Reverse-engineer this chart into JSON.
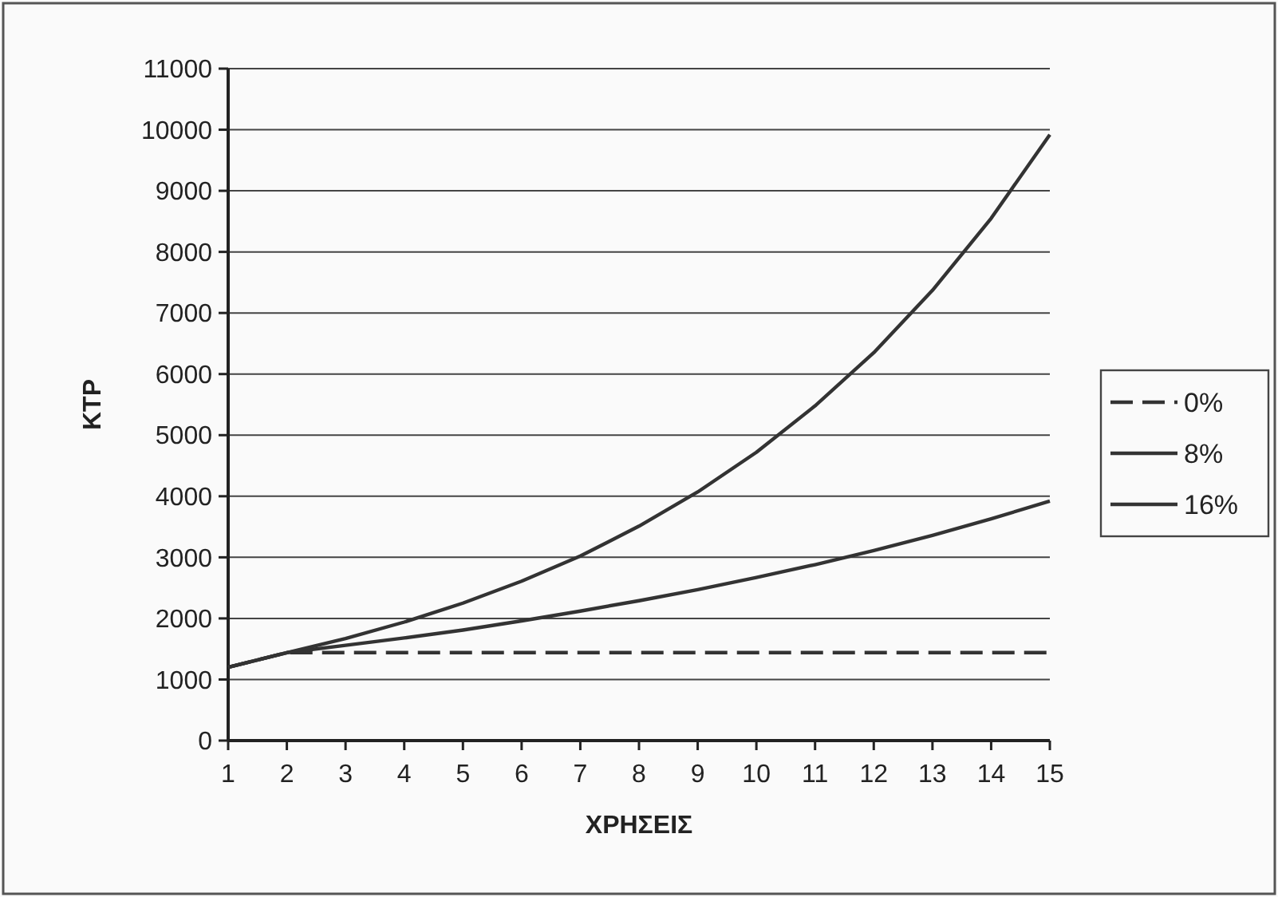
{
  "chart_data": {
    "type": "line",
    "xlabel": "ΧΡΗΣΕΙΣ",
    "ylabel": "ΚΤΡ",
    "x": [
      1,
      2,
      3,
      4,
      5,
      6,
      7,
      8,
      9,
      10,
      11,
      12,
      13,
      14,
      15
    ],
    "series": [
      {
        "name": "0%",
        "color": "#333333",
        "line_style": "dashed",
        "values": [
          1200,
          1440,
          1440,
          1440,
          1440,
          1440,
          1440,
          1440,
          1440,
          1440,
          1440,
          1440,
          1440,
          1440,
          1440
        ]
      },
      {
        "name": "8%",
        "color": "#333333",
        "line_style": "solid",
        "values": [
          1200,
          1440,
          1560,
          1680,
          1810,
          1960,
          2120,
          2290,
          2470,
          2670,
          2880,
          3110,
          3360,
          3630,
          3920
        ]
      },
      {
        "name": "16%",
        "color": "#333333",
        "line_style": "solid",
        "values": [
          1200,
          1440,
          1670,
          1940,
          2250,
          2610,
          3020,
          3510,
          4070,
          4720,
          5480,
          6350,
          7370,
          8550,
          9920
        ]
      }
    ],
    "xlim": [
      1,
      15
    ],
    "xticks": [
      1,
      2,
      3,
      4,
      5,
      6,
      7,
      8,
      9,
      10,
      11,
      12,
      13,
      14,
      15
    ],
    "ylim": [
      0,
      11000
    ],
    "yticks": [
      0,
      1000,
      2000,
      3000,
      4000,
      5000,
      6000,
      7000,
      8000,
      9000,
      10000,
      11000
    ],
    "grid": "y",
    "legend": "right"
  }
}
